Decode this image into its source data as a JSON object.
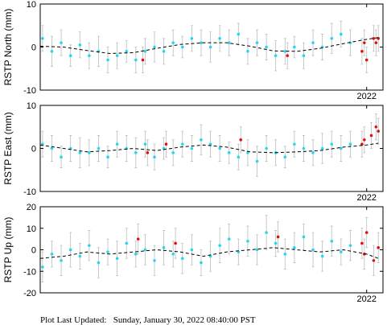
{
  "chart_data": [
    {
      "type": "scatter",
      "ylabel": "RSTP North (mm)",
      "xlim": [
        2008.0,
        2022.7
      ],
      "xticks": [
        2022
      ],
      "ylim": [
        -10,
        10
      ],
      "yticks": [
        -10,
        0,
        10
      ],
      "series": [
        {
          "style": "points",
          "color": "#22d8f0",
          "x": [
            2008.1,
            2008.5,
            2008.9,
            2009.3,
            2009.7,
            2010.1,
            2010.5,
            2010.9,
            2011.3,
            2011.7,
            2012.1,
            2012.5,
            2012.9,
            2013.3,
            2013.7,
            2014.1,
            2014.5,
            2014.9,
            2015.3,
            2015.7,
            2016.1,
            2016.5,
            2016.9,
            2017.3,
            2017.7,
            2018.1,
            2018.5,
            2018.9,
            2019.3,
            2019.7,
            2020.1,
            2020.5,
            2020.9,
            2021.3
          ],
          "values": [
            2,
            -1,
            1,
            -2,
            0.5,
            -2,
            -1,
            -3,
            -2,
            -1,
            -3,
            -1,
            0,
            -1,
            1,
            0,
            2,
            1,
            0,
            2,
            1,
            3,
            -1,
            1,
            0,
            -2,
            -1,
            0,
            -2,
            1,
            0,
            2,
            3,
            1
          ],
          "errors": [
            3,
            3.5,
            3,
            2.5,
            3,
            3,
            3.5,
            3,
            3,
            2.5,
            3,
            3,
            3.5,
            3,
            3,
            2.5,
            3,
            3,
            3.5,
            3,
            3,
            2.5,
            3,
            3,
            3,
            3.5,
            3,
            2.5,
            3,
            3,
            3,
            3.5,
            3,
            3
          ]
        },
        {
          "style": "points",
          "color": "#e01010",
          "x": [
            2012.4,
            2018.6,
            2021.8,
            2021.9,
            2022.0,
            2022.3,
            2022.4,
            2022.5
          ],
          "values": [
            -3,
            -2,
            -1,
            1,
            -3,
            2,
            1,
            2
          ],
          "errors": [
            3,
            3,
            3,
            3,
            3,
            3,
            3,
            3
          ]
        },
        {
          "style": "dashed-line",
          "color": "#000000",
          "x": [
            2008,
            2009,
            2010,
            2011,
            2012,
            2013,
            2014,
            2015,
            2016,
            2017,
            2018,
            2019,
            2020,
            2021,
            2022,
            2022.5
          ],
          "values": [
            0.2,
            0,
            -0.8,
            -1.5,
            -1.3,
            -0.3,
            0.6,
            1.0,
            1.0,
            0.2,
            -0.9,
            -1.0,
            -0.3,
            0.8,
            1.8,
            2.2
          ]
        }
      ]
    },
    {
      "type": "scatter",
      "ylabel": "RSTP East (mm)",
      "xlim": [
        2008.0,
        2022.7
      ],
      "xticks": [
        2022
      ],
      "ylim": [
        -10,
        10
      ],
      "yticks": [
        -10,
        0,
        10
      ],
      "series": [
        {
          "style": "points",
          "color": "#22d8f0",
          "x": [
            2008.1,
            2008.5,
            2008.9,
            2009.3,
            2009.7,
            2010.1,
            2010.5,
            2010.9,
            2011.3,
            2011.7,
            2012.1,
            2012.5,
            2012.9,
            2013.3,
            2013.7,
            2014.1,
            2014.5,
            2014.9,
            2015.3,
            2015.7,
            2016.1,
            2016.5,
            2016.9,
            2017.3,
            2017.7,
            2018.1,
            2018.5,
            2018.9,
            2019.3,
            2019.7,
            2020.1,
            2020.5,
            2020.9,
            2021.3
          ],
          "values": [
            1,
            0,
            -2,
            0,
            -1,
            -1,
            0,
            -2,
            1,
            0,
            -1,
            1,
            -2,
            0,
            -1,
            1,
            0,
            2,
            1,
            0,
            -1,
            -2,
            -1,
            -3,
            0,
            -1,
            -2,
            1,
            0,
            -1,
            0,
            1,
            0,
            1
          ],
          "errors": [
            3,
            3,
            2.5,
            3,
            3.5,
            3,
            3,
            2.5,
            3,
            3,
            3.5,
            3,
            3,
            2.5,
            3,
            3,
            3,
            3.5,
            3,
            3,
            2.5,
            3,
            3,
            3.5,
            3,
            3,
            2.5,
            3,
            3,
            3,
            3.5,
            3,
            3,
            3
          ]
        },
        {
          "style": "points",
          "color": "#e01010",
          "x": [
            2012.6,
            2013.4,
            2016.6,
            2021.8,
            2021.9,
            2022.2,
            2022.4,
            2022.5
          ],
          "values": [
            -1,
            1,
            2,
            1,
            2,
            3,
            5,
            4
          ],
          "errors": [
            3,
            3,
            3,
            3,
            3,
            3,
            3,
            3
          ]
        },
        {
          "style": "dashed-line",
          "color": "#000000",
          "x": [
            2008,
            2009,
            2010,
            2011,
            2012,
            2013,
            2014,
            2015,
            2016,
            2017,
            2018,
            2019,
            2020,
            2021,
            2022,
            2022.5
          ],
          "values": [
            0.8,
            0,
            -0.8,
            -0.5,
            0,
            -0.5,
            0.3,
            0.8,
            0.3,
            -0.8,
            -1,
            -0.8,
            -0.5,
            0.3,
            0.8,
            1.2
          ]
        }
      ]
    },
    {
      "type": "scatter",
      "ylabel": "RSTP Up (mm)",
      "xlim": [
        2008.0,
        2022.7
      ],
      "xticks": [
        2022
      ],
      "ylim": [
        -20,
        20
      ],
      "yticks": [
        -20,
        -10,
        0,
        10,
        20
      ],
      "series": [
        {
          "style": "points",
          "color": "#22d8f0",
          "x": [
            2008.1,
            2008.5,
            2008.9,
            2009.3,
            2009.7,
            2010.1,
            2010.5,
            2010.9,
            2011.3,
            2011.7,
            2012.1,
            2012.5,
            2012.9,
            2013.3,
            2013.7,
            2014.1,
            2014.5,
            2014.9,
            2015.3,
            2015.7,
            2016.1,
            2016.5,
            2016.9,
            2017.3,
            2017.7,
            2018.1,
            2018.5,
            2018.9,
            2019.3,
            2019.7,
            2020.1,
            2020.5,
            2020.9,
            2021.3
          ],
          "values": [
            -8,
            -2,
            -5,
            0,
            -3,
            2,
            -6,
            -1,
            -4,
            3,
            -2,
            0,
            -5,
            1,
            -2,
            -4,
            0,
            -6,
            -3,
            2,
            5,
            -1,
            4,
            0,
            8,
            3,
            -2,
            1,
            6,
            0,
            -3,
            4,
            -1,
            2
          ],
          "errors": [
            7,
            6,
            7,
            8,
            6,
            7,
            7,
            6,
            8,
            7,
            6,
            7,
            7,
            8,
            6,
            7,
            7,
            6,
            7,
            8,
            7,
            6,
            7,
            7,
            8,
            6,
            7,
            7,
            6,
            8,
            7,
            7,
            6,
            7
          ]
        },
        {
          "style": "points",
          "color": "#e01010",
          "x": [
            2012.2,
            2013.8,
            2018.2,
            2021.8,
            2021.9,
            2022.0,
            2022.3,
            2022.5
          ],
          "values": [
            5,
            3,
            6,
            3,
            -2,
            8,
            -5,
            1
          ],
          "errors": [
            7,
            7,
            7,
            7,
            7,
            7,
            7,
            7
          ]
        },
        {
          "style": "dashed-line",
          "color": "#000000",
          "x": [
            2008,
            2009,
            2010,
            2011,
            2012,
            2013,
            2014,
            2015,
            2016,
            2017,
            2018,
            2019,
            2020,
            2021,
            2022,
            2022.5
          ],
          "values": [
            -4,
            -3,
            -1,
            -2,
            -1,
            0,
            -1,
            -3,
            -1,
            0,
            1,
            0,
            -1,
            0,
            -2,
            -4
          ]
        }
      ]
    }
  ],
  "footer": "Plot Last Updated:   Sunday, January 30, 2022 08:40:00 PST"
}
